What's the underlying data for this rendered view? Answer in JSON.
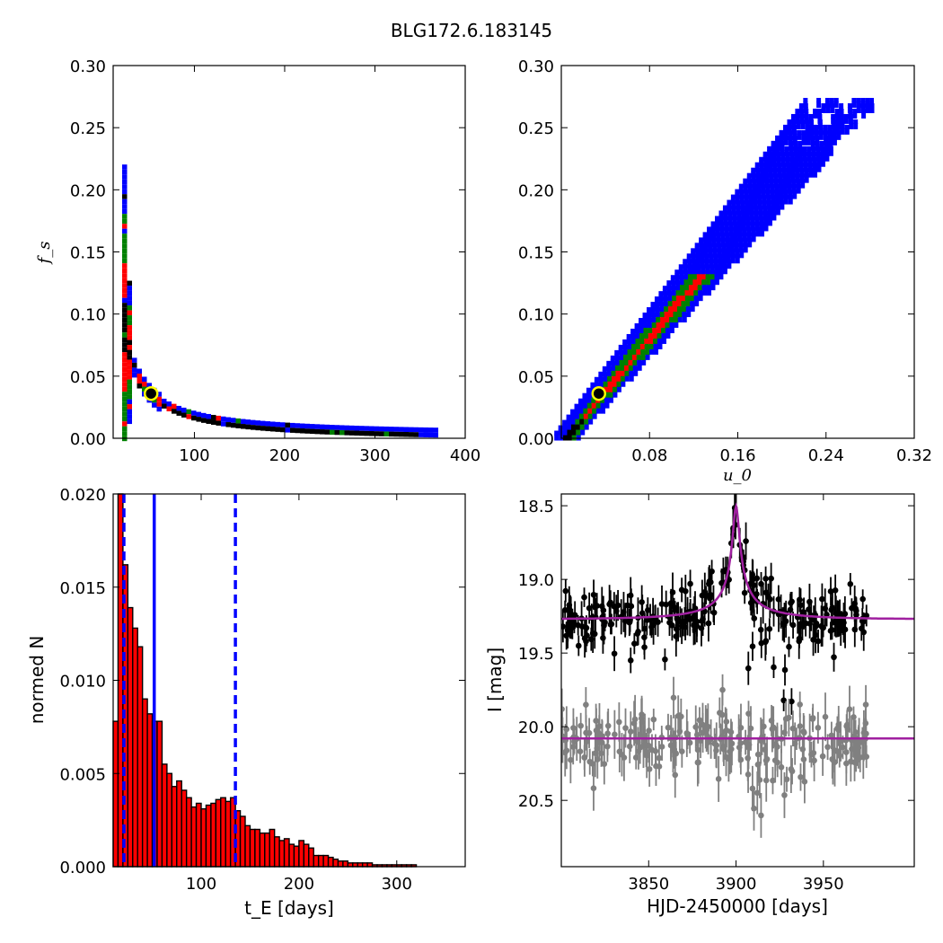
{
  "figure": {
    "title": "BLG172.6.183145"
  },
  "chart_data": [
    {
      "id": "tl",
      "type": "heatmap",
      "xlabel": "",
      "ylabel": "f_s",
      "xlim": [
        10,
        400
      ],
      "ylim": [
        0,
        0.3
      ],
      "xticks": [
        100,
        200,
        300,
        400
      ],
      "yticks": [
        0.0,
        0.05,
        0.1,
        0.15,
        0.2,
        0.25,
        0.3
      ],
      "xtick_labels": [
        "100",
        "200",
        "300",
        "400"
      ],
      "ytick_labels": [
        "0.00",
        "0.05",
        "0.10",
        "0.15",
        "0.20",
        "0.25",
        "0.30"
      ],
      "colors": {
        "outer": "#0000ff",
        "middle": "#008000",
        "inner": "#ff0000",
        "core": "#000000",
        "marker": "#ffff00"
      },
      "best_fit": {
        "x": 52,
        "y": 0.036
      }
    },
    {
      "id": "tr",
      "type": "heatmap",
      "xlabel": "u_0",
      "ylabel": "",
      "xlim": [
        0,
        0.32
      ],
      "ylim": [
        0,
        0.3
      ],
      "xticks": [
        0.08,
        0.16,
        0.24,
        0.32
      ],
      "yticks": [
        0.0,
        0.05,
        0.1,
        0.15,
        0.2,
        0.25,
        0.3
      ],
      "xtick_labels": [
        "0.08",
        "0.16",
        "0.24",
        "0.32"
      ],
      "ytick_labels": [
        "0.00",
        "0.05",
        "0.10",
        "0.15",
        "0.20",
        "0.25",
        "0.30"
      ],
      "colors": {
        "outer": "#0000ff",
        "middle": "#008000",
        "inner": "#ff0000",
        "core": "#000000",
        "marker": "#ffff00"
      },
      "best_fit": {
        "x": 0.034,
        "y": 0.036
      }
    },
    {
      "id": "bl",
      "type": "bar",
      "xlabel": "t_E  [days]",
      "ylabel": "normed N",
      "xlim": [
        10,
        370
      ],
      "ylim": [
        0,
        0.02
      ],
      "xticks": [
        100,
        200,
        300
      ],
      "yticks": [
        0.0,
        0.005,
        0.01,
        0.015,
        0.02
      ],
      "xtick_labels": [
        "100",
        "200",
        "300"
      ],
      "ytick_labels": [
        "0.000",
        "0.005",
        "0.010",
        "0.015",
        "0.020"
      ],
      "bin_width": 5,
      "bin_start": 10,
      "values": [
        0.0078,
        0.0205,
        0.0162,
        0.0139,
        0.0128,
        0.0118,
        0.009,
        0.0082,
        0.0078,
        0.0078,
        0.0055,
        0.005,
        0.0043,
        0.0046,
        0.0041,
        0.0037,
        0.0032,
        0.0034,
        0.0031,
        0.0033,
        0.0034,
        0.0036,
        0.0037,
        0.0035,
        0.0037,
        0.003,
        0.0027,
        0.0022,
        0.002,
        0.002,
        0.0018,
        0.0018,
        0.002,
        0.0016,
        0.0014,
        0.0015,
        0.0012,
        0.0011,
        0.0014,
        0.0012,
        0.001,
        0.0006,
        0.0006,
        0.0006,
        0.0005,
        0.0004,
        0.0003,
        0.0003,
        0.0002,
        0.0002,
        0.0002,
        0.0002,
        0.0002,
        0.0001,
        0.0001,
        0.0001,
        0.0001,
        0.0001,
        0.0001,
        0.0001,
        0.0001,
        0.0001
      ],
      "bar_color": "#ff0000",
      "vlines": [
        {
          "x": 21,
          "style": "dashed",
          "color": "#0000ff"
        },
        {
          "x": 52,
          "style": "solid",
          "color": "#0000ff"
        },
        {
          "x": 135,
          "style": "dashed",
          "color": "#0000ff"
        }
      ]
    },
    {
      "id": "br",
      "type": "scatter",
      "xlabel": "HJD-2450000 [days]",
      "ylabel": "I [mag]",
      "xlim": [
        3800,
        4002
      ],
      "ylim": [
        20.95,
        18.42
      ],
      "xticks": [
        3850,
        3900,
        3950
      ],
      "yticks": [
        18.5,
        19.0,
        19.5,
        20.0,
        20.5
      ],
      "xtick_labels": [
        "3850",
        "3900",
        "3950"
      ],
      "ytick_labels": [
        "18.5",
        "19.0",
        "19.5",
        "20.0",
        "20.5"
      ],
      "series": [
        {
          "color": "#000000",
          "baseline": 19.27,
          "scatter": 0.09,
          "errbar": 0.1,
          "n": 260
        },
        {
          "color": "#808080",
          "baseline": 20.08,
          "scatter": 0.11,
          "errbar": 0.12,
          "n": 240
        }
      ],
      "model": {
        "color": "#a020a0",
        "t0": 3900,
        "tE": 52,
        "u0": 0.034,
        "fs": 0.036,
        "baselines": [
          19.27,
          20.08
        ]
      }
    }
  ]
}
